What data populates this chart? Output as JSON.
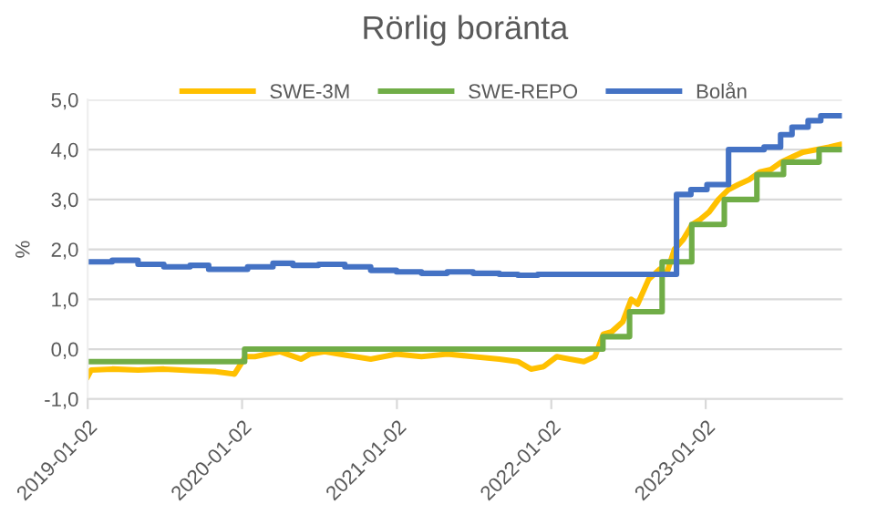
{
  "chart_data": {
    "type": "line",
    "title": "Rörlig boränta",
    "ylabel": "%",
    "legend": "top",
    "grid": "y",
    "ylim": [
      -1,
      5
    ],
    "yticks": [
      {
        "value": -1,
        "label": "-1,0"
      },
      {
        "value": 0,
        "label": "0,0"
      },
      {
        "value": 1,
        "label": "1,0"
      },
      {
        "value": 2,
        "label": "2,0"
      },
      {
        "value": 3,
        "label": "3,0"
      },
      {
        "value": 4,
        "label": "4,0"
      },
      {
        "value": 5,
        "label": "5,0"
      }
    ],
    "xlim": [
      "2019-01-02",
      "2023-11-20"
    ],
    "xticks": [
      "2019-01-02",
      "2020-01-02",
      "2021-01-02",
      "2022-01-02",
      "2023-01-02"
    ],
    "series": [
      {
        "name": "SWE-3M",
        "color": "#ffc000",
        "x": [
          "2019-01-02",
          "2019-01-10",
          "2019-03-01",
          "2019-05-01",
          "2019-07-01",
          "2019-09-01",
          "2019-11-01",
          "2019-12-15",
          "2020-01-10",
          "2020-02-01",
          "2020-03-01",
          "2020-04-01",
          "2020-05-20",
          "2020-06-10",
          "2020-07-15",
          "2020-09-01",
          "2020-11-01",
          "2021-01-01",
          "2021-03-01",
          "2021-05-01",
          "2021-07-01",
          "2021-09-01",
          "2021-10-15",
          "2021-11-15",
          "2021-12-15",
          "2022-01-15",
          "2022-02-15",
          "2022-03-20",
          "2022-04-15",
          "2022-05-05",
          "2022-05-25",
          "2022-06-20",
          "2022-07-10",
          "2022-07-25",
          "2022-08-20",
          "2022-09-15",
          "2022-10-01",
          "2022-10-20",
          "2022-11-10",
          "2022-12-01",
          "2022-12-20",
          "2023-01-10",
          "2023-02-01",
          "2023-02-25",
          "2023-03-20",
          "2023-04-15",
          "2023-05-10",
          "2023-06-05",
          "2023-06-30",
          "2023-07-25",
          "2023-08-20",
          "2023-09-20",
          "2023-10-20",
          "2023-11-15"
        ],
        "values": [
          -0.55,
          -0.42,
          -0.4,
          -0.42,
          -0.4,
          -0.43,
          -0.45,
          -0.5,
          -0.15,
          -0.15,
          -0.1,
          -0.05,
          -0.2,
          -0.1,
          -0.05,
          -0.12,
          -0.2,
          -0.1,
          -0.15,
          -0.1,
          -0.15,
          -0.2,
          -0.25,
          -0.4,
          -0.35,
          -0.15,
          -0.2,
          -0.25,
          -0.15,
          0.3,
          0.35,
          0.55,
          1.0,
          0.9,
          1.4,
          1.6,
          1.5,
          2.0,
          2.2,
          2.5,
          2.6,
          2.75,
          3.0,
          3.2,
          3.3,
          3.4,
          3.55,
          3.6,
          3.75,
          3.85,
          3.95,
          4.0,
          4.05,
          4.1
        ]
      },
      {
        "name": "SWE-REPO",
        "type": "step",
        "color": "#70ad47",
        "x": [
          "2019-01-02",
          "2020-01-08",
          "2022-05-04",
          "2022-07-06",
          "2022-09-21",
          "2022-11-30",
          "2023-02-15",
          "2023-05-03",
          "2023-07-05",
          "2023-09-27",
          "2023-11-15"
        ],
        "values": [
          -0.25,
          0,
          0.25,
          0.75,
          1.75,
          2.5,
          3.0,
          3.5,
          3.75,
          4.0,
          4.0
        ]
      },
      {
        "name": "Bolån",
        "type": "step",
        "color": "#4472c4",
        "x": [
          "2019-01-02",
          "2019-03-01",
          "2019-05-01",
          "2019-07-01",
          "2019-09-01",
          "2019-10-15",
          "2019-12-01",
          "2020-01-15",
          "2020-03-15",
          "2020-05-01",
          "2020-07-01",
          "2020-09-01",
          "2020-11-01",
          "2021-01-01",
          "2021-03-01",
          "2021-05-01",
          "2021-07-01",
          "2021-09-01",
          "2021-10-15",
          "2021-12-01",
          "2022-10-25",
          "2022-11-28",
          "2023-01-05",
          "2023-02-25",
          "2023-05-20",
          "2023-06-28",
          "2023-07-25",
          "2023-09-01",
          "2023-10-01",
          "2023-11-15"
        ],
        "values": [
          1.75,
          1.78,
          1.7,
          1.65,
          1.68,
          1.6,
          1.6,
          1.65,
          1.72,
          1.68,
          1.7,
          1.65,
          1.58,
          1.55,
          1.52,
          1.55,
          1.52,
          1.5,
          1.48,
          1.5,
          3.1,
          3.2,
          3.3,
          4.0,
          4.05,
          4.3,
          4.45,
          4.58,
          4.68,
          4.68
        ]
      }
    ]
  }
}
